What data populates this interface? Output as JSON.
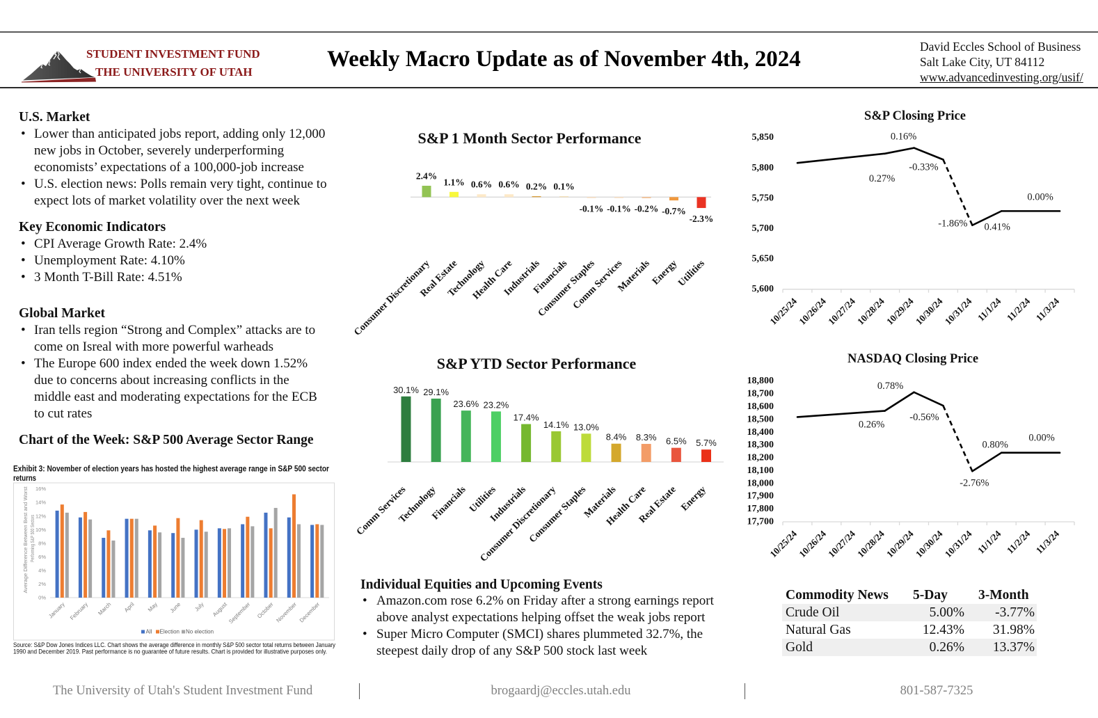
{
  "header": {
    "logo": {
      "line1": "STUDENT INVESTMENT FUND",
      "line2": "THE UNIVERSITY OF UTAH",
      "icon": "mountain-logo"
    },
    "title": "Weekly Macro Update as of November 4th, 2024",
    "contact": {
      "school": "David Eccles School of Business",
      "city": "Salt Lake City, UT 84112",
      "website": "www.advancedinvesting.org/usif/"
    }
  },
  "us_market": {
    "heading": "U.S. Market",
    "bullets": [
      {
        "lines": [
          "Lower than anticipated jobs report, adding only 12,000",
          "new jobs in October, severely underperforming",
          "economists’ expectations of a 100,000-job increase"
        ]
      },
      {
        "lines": [
          "U.S. election news: Polls remain very tight, continue to",
          "expect lots of market volatility over the next week"
        ]
      }
    ]
  },
  "key_indicators": {
    "heading": "Key Economic Indicators",
    "bullets": [
      "CPI Average Growth Rate: 2.4%",
      "Unemployment Rate: 4.10%",
      "3 Month T-Bill Rate: 4.51%"
    ]
  },
  "global_market": {
    "heading": "Global Market",
    "bullets": [
      {
        "lines": [
          "Iran tells region “Strong and Complex” attacks are to",
          "come on Isreal with more powerful warheads"
        ]
      },
      {
        "lines": [
          "The Europe 600 index ended the week down 1.52%",
          "due to concerns about increasing conflicts in the",
          "middle east and moderating expectations for the ECB",
          "to cut rates"
        ]
      }
    ]
  },
  "chart_of_week": {
    "heading": "Chart of the Week: S&P 500 Average Sector Range"
  },
  "equities": {
    "heading": "Individual Equities and Upcoming Events",
    "bullets": [
      {
        "lines": [
          "Amazon.com rose 6.2% on Friday after a strong earnings report",
          "above analyst expectations helping offset the weak jobs report"
        ]
      },
      {
        "lines": [
          "Super Micro Computer (SMCI) shares plummeted 32.7%, the",
          "steepest daily drop of any S&P 500 stock last week"
        ]
      }
    ]
  },
  "commodities": {
    "columns": [
      "Commodity News",
      "5-Day",
      "3-Month"
    ],
    "rows": [
      {
        "name": "Crude Oil",
        "five_day": "5.00%",
        "three_month": "-3.77%"
      },
      {
        "name": "Natural Gas",
        "five_day": "12.43%",
        "three_month": "31.98%"
      },
      {
        "name": "Gold",
        "five_day": "0.26%",
        "three_month": "13.37%"
      }
    ]
  },
  "footer": {
    "org": "The University of Utah's Student Investment Fund",
    "email": "brogaardj@eccles.utah.edu",
    "phone": "801-587-7325"
  },
  "colors": {
    "brand_red": "#8b1a1a",
    "footer_gray": "#808080",
    "row_shade": "#efefef"
  },
  "chart_data": [
    {
      "type": "bar",
      "title": "S&P 1 Month Sector Performance",
      "categories": [
        "Consumer Discretionary",
        "Real Estate",
        "Technology",
        "Health Care",
        "Industrials",
        "Financials",
        "Consumer Staples",
        "Comm Services",
        "Materials",
        "Energy",
        "Utilities"
      ],
      "values": [
        2.4,
        1.1,
        0.6,
        0.6,
        0.2,
        0.1,
        -0.1,
        -0.1,
        -0.2,
        -0.7,
        -2.3
      ],
      "unit": "%",
      "colors": [
        "#92c353",
        "#f8f83c",
        "#fde9c8",
        "#fde9c8",
        "#d9a03f",
        "#f3dcb2",
        "#f6d7b5",
        "#f6d7b5",
        "#f2b27a",
        "#f0993e",
        "#ea3323"
      ]
    },
    {
      "type": "bar",
      "title": "S&P YTD Sector Performance",
      "categories": [
        "Comm Services",
        "Technology",
        "Financials",
        "Utilities",
        "Industrials",
        "Consumer Discretionary",
        "Consumer Staples",
        "Materials",
        "Health Care",
        "Real Estate",
        "Energy"
      ],
      "values": [
        30.1,
        29.1,
        23.6,
        23.2,
        17.4,
        14.1,
        13.0,
        8.4,
        8.3,
        6.5,
        5.7
      ],
      "unit": "%",
      "colors": [
        "#2e7d3f",
        "#3aa150",
        "#45b55a",
        "#4dcf64",
        "#76b82f",
        "#9ac833",
        "#bddb3a",
        "#d4a82c",
        "#f39c67",
        "#e9553d",
        "#ea3118"
      ]
    },
    {
      "type": "line",
      "title": "S&P Closing Price",
      "x": [
        "10/25/24",
        "10/26/24",
        "10/27/24",
        "10/28/24",
        "10/29/24",
        "10/30/24",
        "10/31/24",
        "11/1/24",
        "11/2/24",
        "11/3/24"
      ],
      "points": [
        [
          "10/25/24",
          5808.12
        ],
        [
          "10/28/24",
          5823.52
        ],
        [
          "10/29/24",
          5832.92
        ],
        [
          "10/30/24",
          5813.67
        ],
        [
          "10/31/24",
          5705.45
        ],
        [
          "11/1/24",
          5728.8
        ],
        [
          "11/3/24",
          5728.8
        ]
      ],
      "change_labels": [
        [
          "10/28/24",
          "0.27%"
        ],
        [
          "10/29/24",
          "0.16%"
        ],
        [
          "10/30/24",
          "-0.33%"
        ],
        [
          "10/31/24",
          "-1.86%"
        ],
        [
          "11/1/24",
          "0.41%"
        ],
        [
          "11/3/24",
          "0.00%"
        ]
      ],
      "dashed_segment": [
        "10/30/24",
        "10/31/24"
      ],
      "ylim": [
        5600,
        5850
      ],
      "yticks": [
        5600,
        5650,
        5700,
        5750,
        5800,
        5850
      ]
    },
    {
      "type": "line",
      "title": "NASDAQ Closing Price",
      "x": [
        "10/25/24",
        "10/26/24",
        "10/27/24",
        "10/28/24",
        "10/29/24",
        "10/30/24",
        "10/31/24",
        "11/1/24",
        "11/2/24",
        "11/3/24"
      ],
      "points": [
        [
          "10/25/24",
          18518.61
        ],
        [
          "10/28/24",
          18567.19
        ],
        [
          "10/29/24",
          18712.75
        ],
        [
          "10/30/24",
          18607.93
        ],
        [
          "10/31/24",
          18095.15
        ],
        [
          "11/1/24",
          18239.92
        ],
        [
          "11/3/24",
          18239.92
        ]
      ],
      "change_labels": [
        [
          "10/28/24",
          "0.26%"
        ],
        [
          "10/29/24",
          "0.78%"
        ],
        [
          "10/30/24",
          "-0.56%"
        ],
        [
          "10/31/24",
          "-2.76%"
        ],
        [
          "11/1/24",
          "0.80%"
        ],
        [
          "11/3/24",
          "0.00%"
        ]
      ],
      "dashed_segment": [
        "10/30/24",
        "10/31/24"
      ],
      "ylim": [
        17700,
        18800
      ],
      "yticks": [
        17700,
        17800,
        17900,
        18000,
        18100,
        18200,
        18300,
        18400,
        18500,
        18600,
        18700,
        18800
      ]
    },
    {
      "type": "bar",
      "title_lines": [
        "Exhibit 3: November of election years has hosted the highest average range in S&P 500 sector",
        "returns"
      ],
      "categories": [
        "January",
        "February",
        "March",
        "April",
        "May",
        "June",
        "July",
        "August",
        "September",
        "October",
        "November",
        "December"
      ],
      "series": [
        {
          "name": "All",
          "color": "#4472c4",
          "values": [
            12.8,
            11.8,
            8.8,
            11.6,
            9.9,
            9.5,
            10.0,
            10.2,
            10.8,
            12.5,
            11.8,
            10.7
          ]
        },
        {
          "name": "Election",
          "color": "#ed7d31",
          "values": [
            13.7,
            12.6,
            9.9,
            11.6,
            10.6,
            11.7,
            11.4,
            10.1,
            11.9,
            10.2,
            15.2,
            10.8
          ]
        },
        {
          "name": "No election",
          "color": "#a5a5a5",
          "values": [
            12.5,
            11.5,
            8.4,
            11.6,
            9.6,
            8.8,
            9.7,
            10.2,
            10.5,
            13.2,
            10.8,
            10.7
          ]
        }
      ],
      "ylabel_lines": [
        "Average Difference Between Best and Worst",
        "Performing S&P 500 Sectors"
      ],
      "ylim": [
        0,
        16
      ],
      "yticks": [
        0,
        2,
        4,
        6,
        8,
        10,
        12,
        14,
        16
      ],
      "unit": "%",
      "legend": "bottom",
      "source_lines": [
        "Source: S&P Dow Jones Indices LLC. Chart shows the average difference in monthly S&P 500 sector total returns between January",
        "1990 and December 2019. Past performance is no guarantee of future results. Chart is provided for illustrative purposes only."
      ]
    }
  ]
}
